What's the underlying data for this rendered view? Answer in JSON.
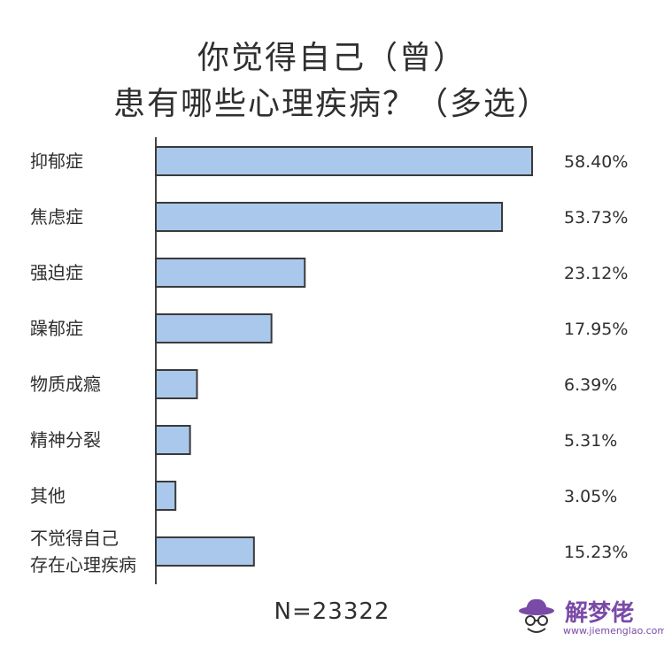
{
  "chart_data": {
    "type": "bar",
    "orientation": "horizontal",
    "title": [
      "你觉得自己（曾）",
      "患有哪些心理疾病？（多选）"
    ],
    "categories": [
      [
        "抑郁症"
      ],
      [
        "焦虑症"
      ],
      [
        "强迫症"
      ],
      [
        "躁郁症"
      ],
      [
        "物质成瘾"
      ],
      [
        "精神分裂"
      ],
      [
        "其他"
      ],
      [
        "不觉得自己",
        "存在心理疾病"
      ]
    ],
    "values": [
      58.4,
      53.73,
      23.12,
      17.95,
      6.39,
      5.31,
      3.05,
      15.23
    ],
    "value_labels": [
      "58.40%",
      "53.73%",
      "23.12%",
      "17.95%",
      "6.39%",
      "5.31%",
      "3.05%",
      "15.23%"
    ],
    "xlim": [
      0,
      60
    ],
    "bar_color": "#a9c8ec",
    "grid": false,
    "legend": "none",
    "note": "N=23322"
  },
  "watermark": {
    "name": "解梦佬",
    "url": "www.jiemenglao.com",
    "color": "#7a4aa8"
  }
}
